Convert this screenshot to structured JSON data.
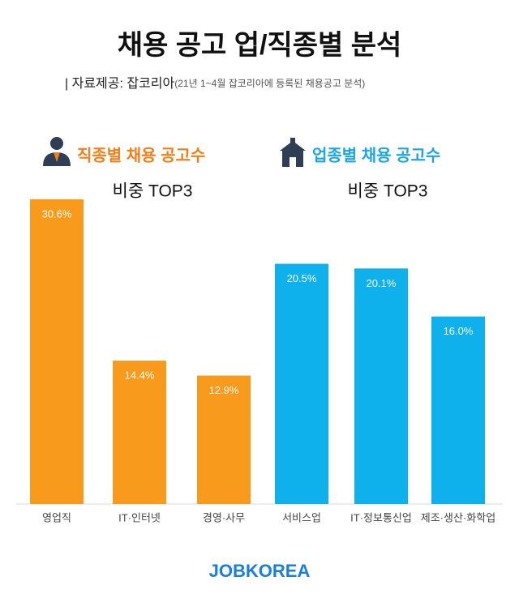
{
  "header": {
    "title": "채용 공고 업/직종별 분석",
    "source": "| 자료제공: 잡코리아",
    "source_note": "(21년 1~4월 잡코리아에 등록된 채용공고 분석)"
  },
  "chart_data": [
    {
      "type": "bar",
      "title": "직종별 채용 공고수",
      "subtitle": "비중 TOP3",
      "categories": [
        "영업직",
        "IT·인터넷",
        "경영·사무"
      ],
      "values": [
        30.6,
        14.4,
        12.9
      ],
      "value_labels": [
        "30.6%",
        "14.4%",
        "12.9%"
      ],
      "color": "#f89b1c",
      "title_color": "#f07f1a",
      "ylim": [
        0,
        30.6
      ]
    },
    {
      "type": "bar",
      "title": "업종별 채용 공고수",
      "subtitle": "비중 TOP3",
      "categories": [
        "서비스업",
        "IT·정보통신업",
        "제조·생산·화학업"
      ],
      "values": [
        20.5,
        20.1,
        16.0
      ],
      "value_labels": [
        "20.5%",
        "20.1%",
        "16.0%"
      ],
      "color": "#0fb1ec",
      "title_color": "#1aa6e0",
      "ylim": [
        0,
        26
      ]
    }
  ],
  "footer": {
    "brand": "JOBKOREA"
  }
}
